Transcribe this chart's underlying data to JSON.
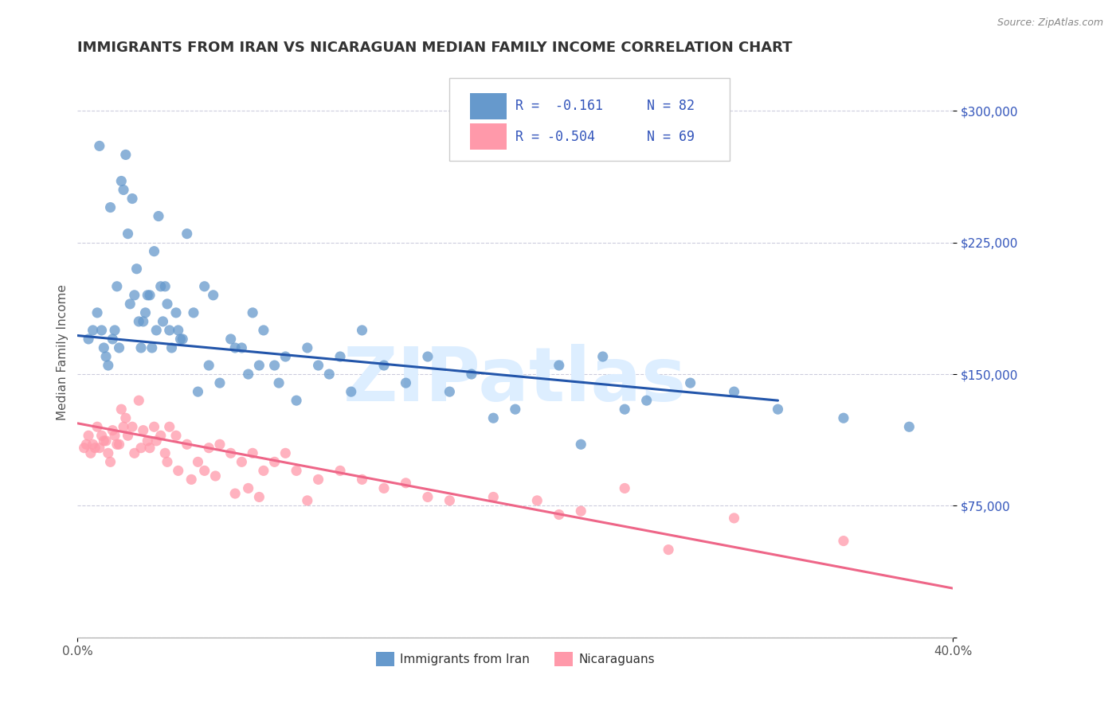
{
  "title": "IMMIGRANTS FROM IRAN VS NICARAGUAN MEDIAN FAMILY INCOME CORRELATION CHART",
  "source_text": "Source: ZipAtlas.com",
  "ylabel": "Median Family Income",
  "xlim": [
    0.0,
    40.0
  ],
  "ylim": [
    0,
    325000
  ],
  "yticks": [
    0,
    75000,
    150000,
    225000,
    300000
  ],
  "ytick_labels": [
    "",
    "$75,000",
    "$150,000",
    "$225,000",
    "$300,000"
  ],
  "series1_label": "Immigrants from Iran",
  "series2_label": "Nicaraguans",
  "color_blue": "#6699CC",
  "color_pink": "#FF99AA",
  "color_blue_dark": "#2255AA",
  "color_pink_dark": "#EE6688",
  "color_legend_text": "#3355BB",
  "color_title": "#333333",
  "color_axis": "#AAAAAA",
  "watermark_color": "#DDEEFF",
  "background": "#FFFFFF",
  "blue_scatter_x": [
    0.5,
    0.7,
    0.9,
    1.0,
    1.1,
    1.2,
    1.3,
    1.4,
    1.5,
    1.6,
    1.7,
    1.8,
    1.9,
    2.0,
    2.1,
    2.2,
    2.3,
    2.4,
    2.5,
    2.6,
    2.7,
    2.8,
    2.9,
    3.0,
    3.1,
    3.2,
    3.3,
    3.4,
    3.5,
    3.6,
    3.7,
    3.8,
    3.9,
    4.0,
    4.1,
    4.2,
    4.3,
    4.5,
    4.6,
    4.7,
    4.8,
    5.0,
    5.3,
    5.5,
    5.8,
    6.0,
    6.2,
    6.5,
    7.0,
    7.2,
    7.5,
    7.8,
    8.0,
    8.3,
    8.5,
    9.0,
    9.2,
    9.5,
    10.0,
    10.5,
    11.0,
    11.5,
    12.0,
    12.5,
    13.0,
    14.0,
    15.0,
    16.0,
    17.0,
    18.0,
    19.0,
    20.0,
    22.0,
    23.0,
    24.0,
    25.0,
    26.0,
    28.0,
    30.0,
    32.0,
    35.0,
    38.0
  ],
  "blue_scatter_y": [
    170000,
    175000,
    185000,
    280000,
    175000,
    165000,
    160000,
    155000,
    245000,
    170000,
    175000,
    200000,
    165000,
    260000,
    255000,
    275000,
    230000,
    190000,
    250000,
    195000,
    210000,
    180000,
    165000,
    180000,
    185000,
    195000,
    195000,
    165000,
    220000,
    175000,
    240000,
    200000,
    180000,
    200000,
    190000,
    175000,
    165000,
    185000,
    175000,
    170000,
    170000,
    230000,
    185000,
    140000,
    200000,
    155000,
    195000,
    145000,
    170000,
    165000,
    165000,
    150000,
    185000,
    155000,
    175000,
    155000,
    145000,
    160000,
    135000,
    165000,
    155000,
    150000,
    160000,
    140000,
    175000,
    155000,
    145000,
    160000,
    140000,
    150000,
    125000,
    130000,
    155000,
    110000,
    160000,
    130000,
    135000,
    145000,
    140000,
    130000,
    125000,
    120000
  ],
  "pink_scatter_x": [
    0.3,
    0.4,
    0.5,
    0.6,
    0.7,
    0.8,
    0.9,
    1.0,
    1.1,
    1.2,
    1.3,
    1.4,
    1.5,
    1.6,
    1.7,
    1.8,
    1.9,
    2.0,
    2.1,
    2.2,
    2.3,
    2.5,
    2.6,
    2.8,
    2.9,
    3.0,
    3.2,
    3.3,
    3.5,
    3.6,
    3.8,
    4.0,
    4.1,
    4.2,
    4.5,
    4.6,
    5.0,
    5.2,
    5.5,
    5.8,
    6.0,
    6.3,
    6.5,
    7.0,
    7.2,
    7.5,
    7.8,
    8.0,
    8.3,
    8.5,
    9.0,
    9.5,
    10.0,
    10.5,
    11.0,
    12.0,
    13.0,
    14.0,
    15.0,
    16.0,
    17.0,
    19.0,
    21.0,
    22.0,
    23.0,
    25.0,
    27.0,
    30.0,
    35.0
  ],
  "pink_scatter_y": [
    108000,
    110000,
    115000,
    105000,
    110000,
    108000,
    120000,
    108000,
    115000,
    112000,
    112000,
    105000,
    100000,
    118000,
    115000,
    110000,
    110000,
    130000,
    120000,
    125000,
    115000,
    120000,
    105000,
    135000,
    108000,
    118000,
    112000,
    108000,
    120000,
    112000,
    115000,
    105000,
    100000,
    120000,
    115000,
    95000,
    110000,
    90000,
    100000,
    95000,
    108000,
    92000,
    110000,
    105000,
    82000,
    100000,
    85000,
    105000,
    80000,
    95000,
    100000,
    105000,
    95000,
    78000,
    90000,
    95000,
    90000,
    85000,
    88000,
    80000,
    78000,
    80000,
    78000,
    70000,
    72000,
    85000,
    50000,
    68000,
    55000
  ],
  "blue_trend_x": [
    0.0,
    32.0
  ],
  "blue_trend_y": [
    172000,
    135000
  ],
  "pink_trend_x": [
    0.0,
    40.0
  ],
  "pink_trend_y": [
    122000,
    28000
  ],
  "grid_color": "#CCCCDD",
  "title_fontsize": 13,
  "axis_label_fontsize": 11,
  "tick_fontsize": 11,
  "legend_fontsize": 12
}
